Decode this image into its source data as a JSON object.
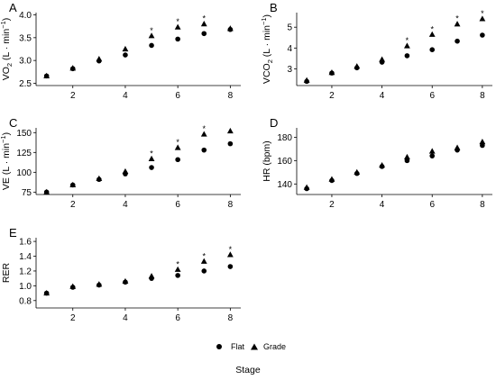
{
  "chart_data": [
    {
      "panel": "A",
      "type": "scatter",
      "ylabel_main": "VO",
      "ylabel_sub": "2",
      "ylabel_unit": " (L · min",
      "ylabel_sup": "−1",
      "ylabel_end": ")",
      "x": [
        1,
        2,
        3,
        4,
        5,
        6,
        7,
        8
      ],
      "xticks": [
        2,
        4,
        6,
        8
      ],
      "yticks": [
        2.5,
        3.0,
        3.5,
        4.0
      ],
      "xlim": [
        0.6,
        8.4
      ],
      "ylim": [
        2.45,
        4.05
      ],
      "series": [
        {
          "name": "Flat",
          "marker": "circle",
          "values": [
            2.66,
            2.82,
            2.99,
            3.12,
            3.33,
            3.47,
            3.59,
            3.68
          ]
        },
        {
          "name": "Grade",
          "marker": "triangle",
          "values": [
            2.66,
            2.83,
            3.03,
            3.25,
            3.54,
            3.73,
            3.8,
            3.7
          ]
        }
      ],
      "significance": {
        "stages": [
          5,
          6,
          7
        ],
        "label": "*"
      }
    },
    {
      "panel": "B",
      "type": "scatter",
      "ylabel_main": "VCO",
      "ylabel_sub": "2",
      "ylabel_unit": " (L · min",
      "ylabel_sup": "−1",
      "ylabel_end": ")",
      "x": [
        1,
        2,
        3,
        4,
        5,
        6,
        7,
        8
      ],
      "xticks": [
        2,
        4,
        6,
        8
      ],
      "yticks": [
        3,
        4,
        5
      ],
      "xlim": [
        0.6,
        8.4
      ],
      "ylim": [
        2.2,
        5.7
      ],
      "series": [
        {
          "name": "Flat",
          "marker": "circle",
          "values": [
            2.4,
            2.8,
            3.05,
            3.32,
            3.63,
            3.92,
            4.33,
            4.62
          ]
        },
        {
          "name": "Grade",
          "marker": "triangle",
          "values": [
            2.45,
            2.82,
            3.12,
            3.45,
            4.1,
            4.65,
            5.15,
            5.4
          ]
        }
      ],
      "significance": {
        "stages": [
          5,
          6,
          7,
          8
        ],
        "label": "*"
      }
    },
    {
      "panel": "C",
      "type": "scatter",
      "ylabel_main": "VE",
      "ylabel_unit": " (L · min",
      "ylabel_sup": "−1",
      "ylabel_end": ")",
      "x": [
        1,
        2,
        3,
        4,
        5,
        6,
        7,
        8
      ],
      "xticks": [
        2,
        4,
        6,
        8
      ],
      "yticks": [
        75,
        100,
        125,
        150
      ],
      "xlim": [
        0.6,
        8.4
      ],
      "ylim": [
        72,
        156
      ],
      "series": [
        {
          "name": "Flat",
          "marker": "circle",
          "values": [
            75,
            84,
            91,
            98,
            106,
            116,
            128,
            136
          ]
        },
        {
          "name": "Grade",
          "marker": "triangle",
          "values": [
            75,
            84,
            92,
            101,
            117,
            131,
            148,
            152
          ]
        }
      ],
      "significance": {
        "stages": [
          5,
          6,
          7
        ],
        "label": "*"
      }
    },
    {
      "panel": "D",
      "type": "scatter",
      "ylabel_main": "HR (bpm)",
      "x": [
        1,
        2,
        3,
        4,
        5,
        6,
        7,
        8
      ],
      "xticks": [
        2,
        4,
        6,
        8
      ],
      "yticks": [
        140,
        160,
        180
      ],
      "xlim": [
        0.6,
        8.4
      ],
      "ylim": [
        131,
        188
      ],
      "series": [
        {
          "name": "Flat",
          "marker": "circle",
          "values": [
            136,
            143,
            149,
            155,
            160,
            164,
            169,
            173
          ]
        },
        {
          "name": "Grade",
          "marker": "triangle",
          "values": [
            137,
            144,
            150,
            156,
            163,
            168,
            171,
            176
          ]
        }
      ],
      "significance": {
        "stages": [],
        "label": "*"
      }
    },
    {
      "panel": "E",
      "type": "scatter",
      "ylabel_main": "RER",
      "x": [
        1,
        2,
        3,
        4,
        5,
        6,
        7,
        8
      ],
      "xticks": [
        2,
        4,
        6,
        8
      ],
      "yticks": [
        0.8,
        1.0,
        1.2,
        1.4,
        1.6
      ],
      "xlim": [
        0.6,
        8.4
      ],
      "ylim": [
        0.7,
        1.65
      ],
      "series": [
        {
          "name": "Flat",
          "marker": "circle",
          "values": [
            0.9,
            0.98,
            1.01,
            1.05,
            1.1,
            1.14,
            1.2,
            1.26
          ]
        },
        {
          "name": "Grade",
          "marker": "triangle",
          "values": [
            0.9,
            0.99,
            1.02,
            1.06,
            1.13,
            1.22,
            1.33,
            1.42
          ]
        }
      ],
      "significance": {
        "stages": [
          6,
          7,
          8
        ],
        "label": "*"
      }
    }
  ],
  "legend": {
    "items": [
      {
        "label": "Flat",
        "marker": "circle"
      },
      {
        "label": "Grade",
        "marker": "triangle"
      }
    ]
  },
  "xlabel": "Stage"
}
